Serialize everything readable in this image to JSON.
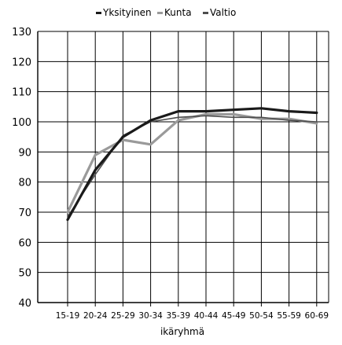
{
  "chart_data": {
    "type": "line",
    "xlabel": "ikäryhmä",
    "ylabel": "",
    "ylim": [
      40,
      130
    ],
    "yticks": [
      40,
      50,
      60,
      70,
      80,
      90,
      100,
      110,
      120,
      130
    ],
    "categories": [
      "15-19",
      "20-24",
      "25-29",
      "30-34",
      "35-39",
      "40-44",
      "45-49",
      "50-54",
      "55-59",
      "60-69"
    ],
    "grid": true,
    "legend_position": "top-center",
    "series": [
      {
        "name": "Yksityinen",
        "color": "#1a1a1a",
        "values": [
          67.5,
          84,
          95,
          100.5,
          103.5,
          103.5,
          104,
          104.5,
          103.5,
          103
        ]
      },
      {
        "name": "Kunta",
        "color": "#9a9a9a",
        "values": [
          70,
          89,
          94,
          92.5,
          100.5,
          102.5,
          102.5,
          101,
          101,
          99.5
        ]
      },
      {
        "name": "Valtio",
        "color": "#4d4d4d",
        "values": [
          68.5,
          82.5,
          95.5,
          100,
          101.5,
          102,
          101.5,
          101.5,
          100.5,
          100
        ]
      }
    ]
  }
}
